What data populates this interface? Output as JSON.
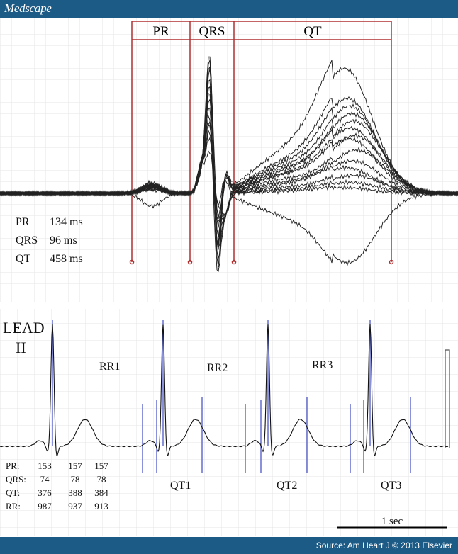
{
  "header": {
    "logo": "Medscape"
  },
  "footer": {
    "source": "Source: Am Heart J © 2013 Elsevier"
  },
  "colors": {
    "bar": "#1d5b87",
    "interval": "#b03030",
    "marker": "#4a58c8"
  },
  "top_panel": {
    "segments": [
      "PR",
      "QRS",
      "QT"
    ],
    "measurements": [
      {
        "label": "PR",
        "value": "134 ms"
      },
      {
        "label": "QRS",
        "value": "96 ms"
      },
      {
        "label": "QT",
        "value": "458 ms"
      }
    ]
  },
  "bottom_panel": {
    "lead_line1": "LEAD",
    "lead_line2": "II",
    "rr_labels": [
      "RR1",
      "RR2",
      "RR3"
    ],
    "qt_labels": [
      "QT1",
      "QT2",
      "QT3"
    ],
    "table": [
      {
        "label": "PR:",
        "values": [
          "153",
          "157",
          "157"
        ]
      },
      {
        "label": "QRS:",
        "values": [
          "74",
          "78",
          "78"
        ]
      },
      {
        "label": "QT:",
        "values": [
          "376",
          "388",
          "384"
        ]
      },
      {
        "label": "RR:",
        "values": [
          "987",
          "937",
          "913"
        ]
      }
    ],
    "scale_label": "1 sec"
  }
}
